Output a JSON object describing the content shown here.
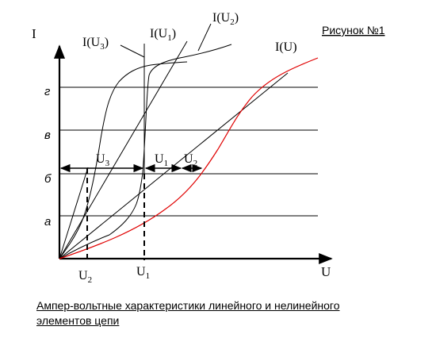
{
  "figure_label": "Рисунок №1",
  "axis": {
    "y_label": "I",
    "x_label": "U"
  },
  "levels": [
    "а",
    "б",
    "в",
    "г"
  ],
  "curve_labels": {
    "I_U": "I(U)",
    "I_U1": "I(U",
    "I_U1_sub": "1",
    "I_U2": "I(U",
    "I_U2_sub": "2",
    "I_U3": "I(U",
    "I_U3_sub": "3",
    "close": ")"
  },
  "voltage_labels": {
    "U": "U",
    "sub1": "1",
    "sub2": "2",
    "sub3": "3"
  },
  "caption": {
    "line1": "Ампер-вольтные характеристики линейного и нелинейного",
    "line2": "элементов цепи"
  },
  "colors": {
    "nonlinear_curve": "#e00000",
    "ink": "#000000"
  }
}
